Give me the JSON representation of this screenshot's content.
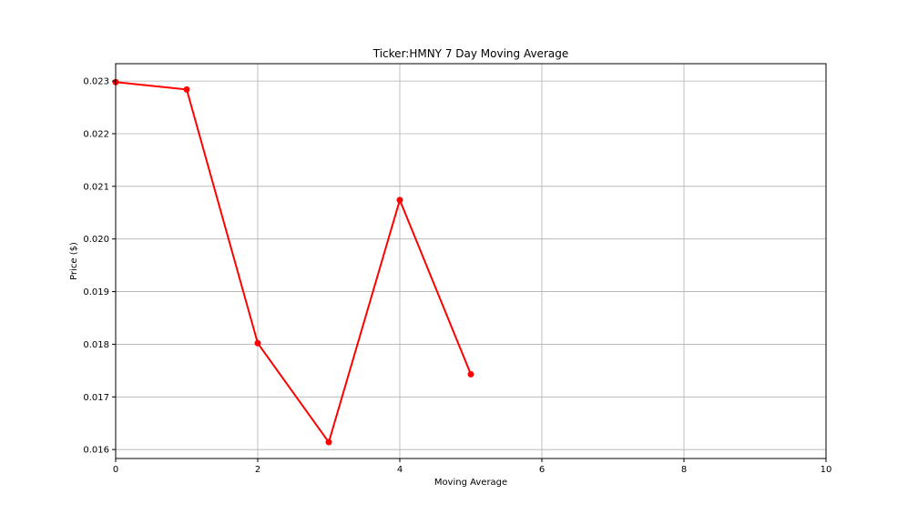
{
  "chart_data": {
    "type": "line",
    "title": "Ticker:HMNY 7 Day Moving Average",
    "xlabel": "Moving Average",
    "ylabel": "Price ($)",
    "xlim": [
      0,
      10
    ],
    "ylim": [
      0.01583,
      0.02333
    ],
    "xticks": [
      0,
      2,
      4,
      6,
      8,
      10
    ],
    "xtick_labels": [
      "0",
      "2",
      "4",
      "6",
      "8",
      "10"
    ],
    "yticks": [
      0.016,
      0.017,
      0.018,
      0.019,
      0.02,
      0.021,
      0.022,
      0.023
    ],
    "ytick_labels": [
      "0.016",
      "0.017",
      "0.018",
      "0.019",
      "0.020",
      "0.021",
      "0.022",
      "0.023"
    ],
    "grid": true,
    "series": [
      {
        "color": "#ff0000",
        "x": [
          0,
          1,
          2,
          3,
          4,
          5
        ],
        "y": [
          0.02298,
          0.02284,
          0.01802,
          0.01614,
          0.02074,
          0.01743
        ]
      }
    ]
  }
}
